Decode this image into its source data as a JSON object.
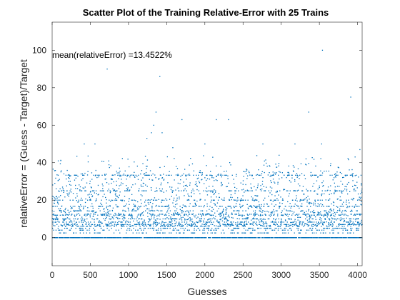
{
  "chart_data": {
    "type": "scatter",
    "title": "Scatter Plot of the Training Relative-Error with 25 Trains",
    "xlabel": "Guesses",
    "ylabel": "relativeError = (Guess - Target)/Target",
    "xlim": [
      0,
      4060
    ],
    "ylim": [
      -15,
      115
    ],
    "x_ticks": [
      0,
      500,
      1000,
      1500,
      2000,
      2500,
      3000,
      3500,
      4000
    ],
    "y_ticks": [
      0,
      20,
      40,
      60,
      80,
      100
    ],
    "grid": false,
    "marker_color": "#0072BD",
    "annotation": "mean(relativeError) =13.4522%",
    "n_points": 4060,
    "outliers": [
      {
        "x": 720,
        "y": 90
      },
      {
        "x": 1410,
        "y": 86
      },
      {
        "x": 1360,
        "y": 67
      },
      {
        "x": 3540,
        "y": 100
      },
      {
        "x": 3910,
        "y": 75
      },
      {
        "x": 3360,
        "y": 67
      },
      {
        "x": 1700,
        "y": 63
      },
      {
        "x": 2150,
        "y": 63
      },
      {
        "x": 2310,
        "y": 63
      },
      {
        "x": 1330,
        "y": 60
      },
      {
        "x": 1300,
        "y": 56
      },
      {
        "x": 1440,
        "y": 56
      },
      {
        "x": 1240,
        "y": 53
      },
      {
        "x": 420,
        "y": 50
      },
      {
        "x": 560,
        "y": 50
      },
      {
        "x": 1580,
        "y": 48
      },
      {
        "x": 2000,
        "y": 50
      },
      {
        "x": 2760,
        "y": 50
      },
      {
        "x": 3180,
        "y": 50
      },
      {
        "x": 3530,
        "y": 50
      },
      {
        "x": 4030,
        "y": 47
      }
    ]
  }
}
